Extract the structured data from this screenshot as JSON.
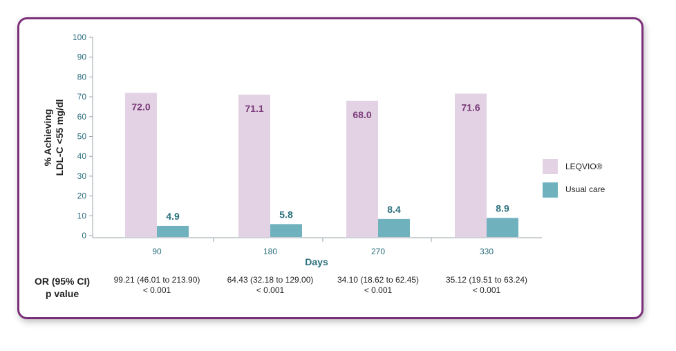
{
  "chart_data": {
    "type": "bar",
    "categories": [
      "90",
      "180",
      "270",
      "330"
    ],
    "series": [
      {
        "name": "LEQVIO®",
        "values": [
          72.0,
          71.1,
          68.0,
          71.6
        ],
        "labels": [
          "72.0",
          "71.1",
          "68.0",
          "71.6"
        ],
        "color": "#e3d2e4"
      },
      {
        "name": "Usual care",
        "values": [
          4.9,
          5.8,
          8.4,
          8.9
        ],
        "labels": [
          "4.9",
          "5.8",
          "8.4",
          "8.9"
        ],
        "color": "#6fb2bd"
      }
    ],
    "ylabel_line1": "% Achieving",
    "ylabel_line2": "LDL-C <55 mg/dl",
    "xlabel": "Days",
    "ylim": [
      0,
      100
    ],
    "yticks": [
      0,
      10,
      20,
      30,
      40,
      50,
      60,
      70,
      80,
      90,
      100
    ],
    "legend_position": "right"
  },
  "stats": {
    "row_label_line1": "OR (95% CI)",
    "row_label_line2": "p value",
    "or": [
      "99.21 (46.01 to 213.90)",
      "64.43 (32.18 to 129.00)",
      "34.10 (18.62 to 62.45)",
      "35.12 (19.51 to 63.24)"
    ],
    "p": [
      "< 0.001",
      "< 0.001",
      "< 0.001",
      "< 0.001"
    ]
  }
}
